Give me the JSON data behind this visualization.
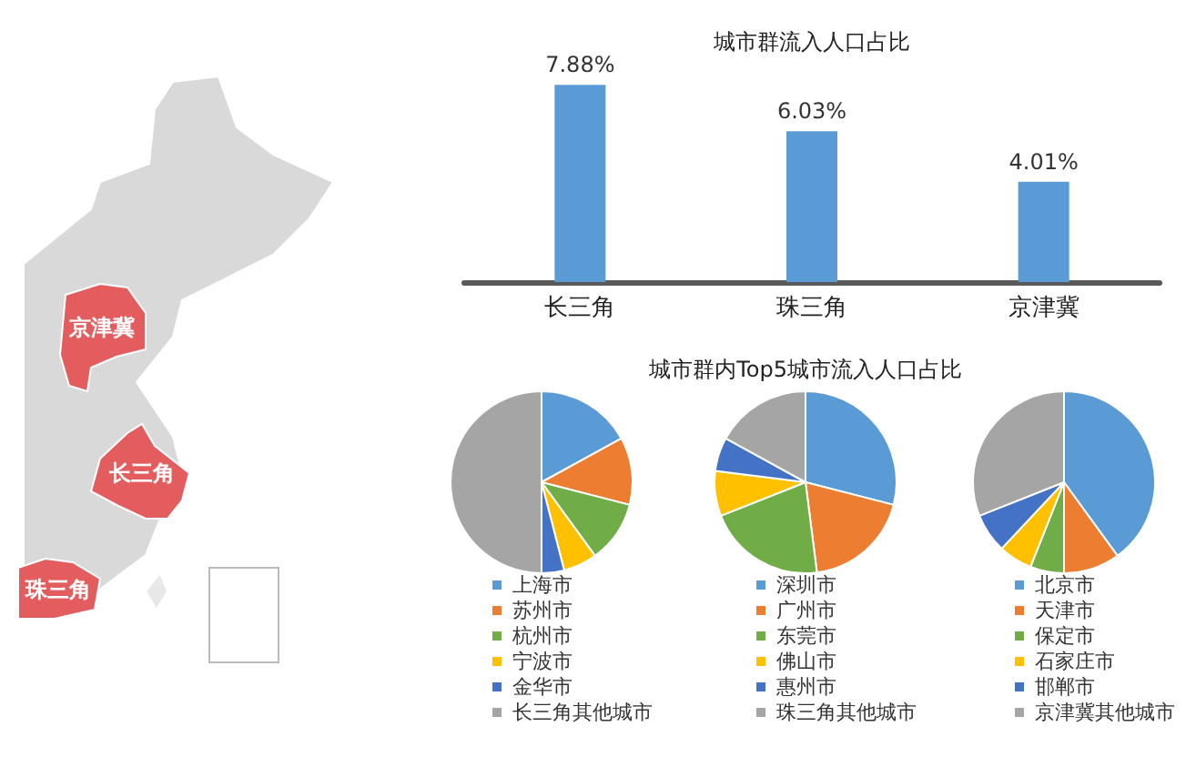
{
  "chart_data": [
    {
      "type": "other",
      "annotations": [
        "京津冀",
        "长三角",
        "珠三角"
      ]
    },
    {
      "type": "bar",
      "title": "城市群流入人口占比",
      "categories": [
        "长三角",
        "珠三角",
        "京津冀"
      ],
      "values": [
        7.88,
        6.03,
        4.01
      ],
      "value_labels": [
        "7.88%",
        "6.03%",
        "4.01%"
      ],
      "color": "#5b9bd5"
    },
    {
      "type": "pie",
      "categories": [
        "上海市",
        "苏州市",
        "杭州市",
        "宁波市",
        "金华市",
        "长三角其他城市"
      ],
      "values": [
        17,
        12,
        11,
        6,
        4,
        50
      ],
      "colors": [
        "#5b9bd5",
        "#ed7d31",
        "#70ad47",
        "#ffc000",
        "#4472c4",
        "#a5a5a5"
      ],
      "legend": "bottom"
    },
    {
      "type": "pie",
      "title": "城市群内Top5城市流入人口占比",
      "categories": [
        "深圳市",
        "广州市",
        "东莞市",
        "佛山市",
        "惠州市",
        "珠三角其他城市"
      ],
      "values": [
        29,
        19,
        21,
        8,
        6,
        17
      ],
      "colors": [
        "#5b9bd5",
        "#ed7d31",
        "#70ad47",
        "#ffc000",
        "#4472c4",
        "#a5a5a5"
      ],
      "legend": "bottom"
    },
    {
      "type": "pie",
      "categories": [
        "北京市",
        "天津市",
        "保定市",
        "石家庄市",
        "邯郸市",
        "京津冀其他城市"
      ],
      "values": [
        40,
        10,
        6,
        6,
        7,
        31
      ],
      "colors": [
        "#5b9bd5",
        "#ed7d31",
        "#70ad47",
        "#ffc000",
        "#4472c4",
        "#a5a5a5"
      ],
      "legend": "bottom"
    }
  ]
}
